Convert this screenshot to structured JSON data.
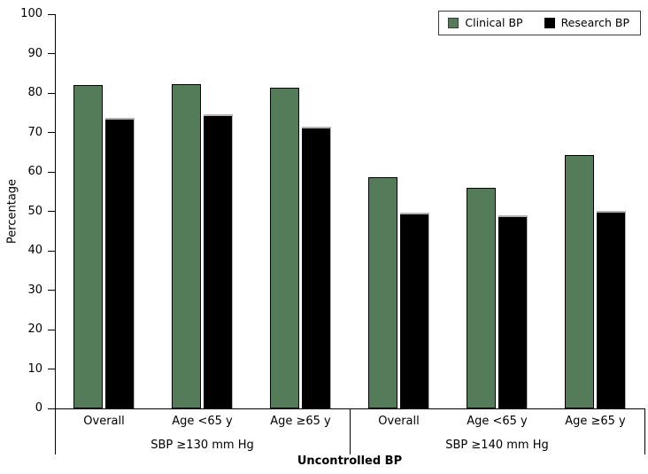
{
  "chart_data": {
    "type": "bar",
    "title": "",
    "ylabel": "Percentage",
    "xlabel": "Uncontrolled BP",
    "ylim": [
      0,
      100
    ],
    "ytick_step": 10,
    "yticks": [
      0,
      10,
      20,
      30,
      40,
      50,
      60,
      70,
      80,
      90,
      100
    ],
    "grid": "off",
    "legend_position": "top-right",
    "groups": [
      {
        "label": "SBP ≥130 mm Hg",
        "categories": [
          "Overall",
          "Age <65 y",
          "Age ≥65 y"
        ]
      },
      {
        "label": "SBP ≥140 mm Hg",
        "categories": [
          "Overall",
          "Age <65 y",
          "Age ≥65 y"
        ]
      }
    ],
    "categories_flat": [
      "Overall",
      "Age <65 y",
      "Age ≥65 y",
      "Overall",
      "Age <65 y",
      "Age ≥65 y"
    ],
    "series": [
      {
        "name": "Clinical BP",
        "color": "#557c58",
        "values": [
          82.1,
          82.3,
          81.4,
          58.7,
          56.0,
          64.3
        ]
      },
      {
        "name": "Research BP",
        "color": "#000000",
        "values": [
          73.6,
          74.7,
          71.5,
          49.6,
          49.1,
          50.2
        ]
      }
    ],
    "colors": {
      "clinical_green": "#557c58",
      "research_black": "#000000",
      "axis": "#000000",
      "background": "#ffffff"
    }
  }
}
